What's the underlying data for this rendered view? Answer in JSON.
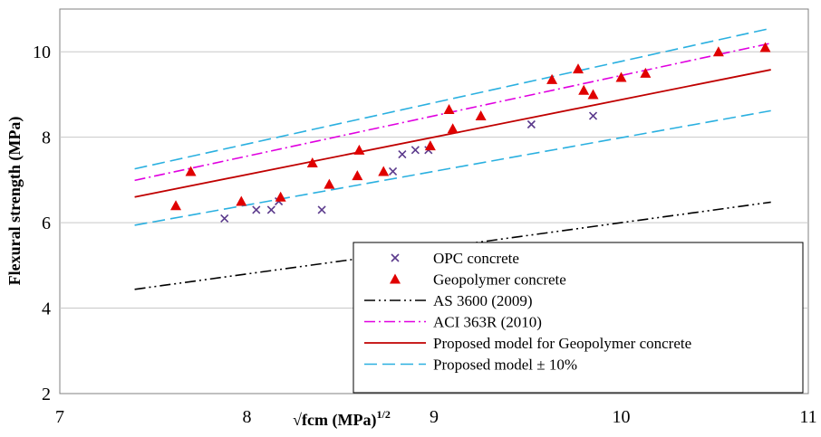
{
  "chart_data": {
    "type": "scatter",
    "xlabel": "√fcm (MPa)",
    "xlabel_sup": "1/2",
    "ylabel": "Flexural strength (MPa)",
    "xlim": [
      7,
      11
    ],
    "ylim": [
      2,
      11
    ],
    "x_ticks": [
      "7",
      "8",
      "9",
      "10",
      "11"
    ],
    "y_ticks": [
      "2",
      "4",
      "6",
      "8",
      "10"
    ],
    "grid": "horizontal",
    "legend_position": "bottom-right",
    "series": [
      {
        "name": "OPC concrete",
        "kind": "points",
        "marker": "x",
        "color": "#5b3a8c",
        "x": [
          7.88,
          8.05,
          8.13,
          8.17,
          8.4,
          8.78,
          8.83,
          8.9,
          8.97,
          9.52,
          9.85
        ],
        "y": [
          6.1,
          6.3,
          6.3,
          6.5,
          6.3,
          7.2,
          7.6,
          7.7,
          7.7,
          8.3,
          8.5
        ]
      },
      {
        "name": "Geopolymer concrete",
        "kind": "points",
        "marker": "triangle",
        "color": "#e00000",
        "x": [
          7.62,
          7.7,
          7.97,
          8.18,
          8.35,
          8.44,
          8.59,
          8.6,
          8.73,
          8.98,
          9.08,
          9.1,
          9.25,
          9.63,
          9.77,
          9.8,
          9.85,
          10,
          10.13,
          10.52,
          10.77
        ],
        "y": [
          6.4,
          7.2,
          6.5,
          6.6,
          7.4,
          6.9,
          7.1,
          7.7,
          7.2,
          7.8,
          8.65,
          8.2,
          8.5,
          9.35,
          9.6,
          9.1,
          9.0,
          9.4,
          9.5,
          10.0,
          10.1
        ]
      },
      {
        "name": "AS 3600 (2009)",
        "kind": "line",
        "dash": "dash-dot-dot",
        "color": "#000000",
        "x": [
          7.4,
          10.8
        ],
        "y": [
          4.44,
          6.48
        ]
      },
      {
        "name": "ACI 363R (2010)",
        "kind": "line",
        "dash": "dash-dot",
        "color": "#e000e0",
        "x": [
          7.4,
          10.8
        ],
        "y": [
          6.99,
          10.2
        ]
      },
      {
        "name": "Proposed model for Geopolymer concrete",
        "kind": "line",
        "dash": "solid",
        "color": "#c00000",
        "x": [
          7.4,
          10.8
        ],
        "y": [
          6.6,
          9.58
        ]
      },
      {
        "name": "Proposed model ± 10%",
        "kind": "line",
        "dash": "dash",
        "color": "#2ab0e0",
        "x": [
          7.4,
          10.8
        ],
        "y": [
          7.26,
          10.55
        ]
      },
      {
        "name": "",
        "kind": "line",
        "dash": "dash",
        "color": "#2ab0e0",
        "x": [
          7.4,
          10.8
        ],
        "y": [
          5.94,
          8.62
        ]
      }
    ]
  }
}
